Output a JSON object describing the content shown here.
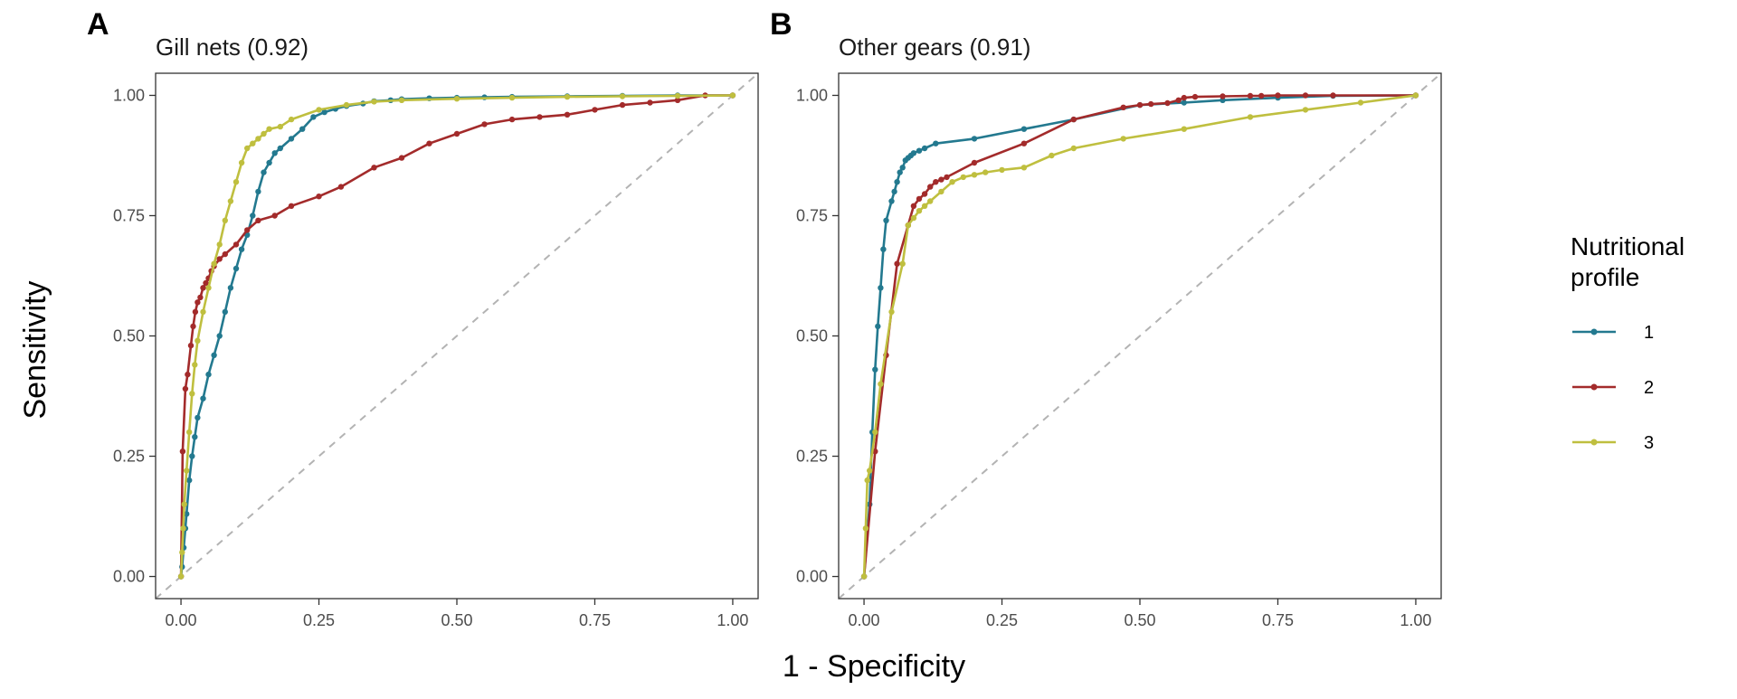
{
  "x_axis_title": "1 - Specificity",
  "y_axis_title": "Sensitivity",
  "legend": {
    "title_lines": [
      "Nutritional",
      "profile"
    ],
    "placement": "right"
  },
  "chart_data": [
    {
      "type": "line",
      "panel_letter": "A",
      "title": "Gill nets (0.92)",
      "xlim": [
        0,
        1
      ],
      "ylim": [
        0,
        1
      ],
      "x_ticks": [
        "0.00",
        "0.25",
        "0.50",
        "0.75",
        "1.00"
      ],
      "y_ticks": [
        "0.00",
        "0.25",
        "0.50",
        "0.75",
        "1.00"
      ],
      "reference_line": "diagonal",
      "grid": false,
      "series": [
        {
          "name": "1",
          "color": "#23798f",
          "x": [
            0,
            0.002,
            0.005,
            0.008,
            0.01,
            0.015,
            0.02,
            0.025,
            0.03,
            0.04,
            0.05,
            0.06,
            0.07,
            0.08,
            0.09,
            0.1,
            0.11,
            0.12,
            0.13,
            0.14,
            0.15,
            0.16,
            0.17,
            0.18,
            0.2,
            0.22,
            0.24,
            0.26,
            0.28,
            0.3,
            0.33,
            0.35,
            0.38,
            0.4,
            0.45,
            0.5,
            0.55,
            0.6,
            0.7,
            0.8,
            0.9,
            1.0
          ],
          "y": [
            0,
            0.02,
            0.06,
            0.1,
            0.13,
            0.2,
            0.25,
            0.29,
            0.33,
            0.37,
            0.42,
            0.46,
            0.5,
            0.55,
            0.6,
            0.64,
            0.68,
            0.71,
            0.75,
            0.8,
            0.84,
            0.86,
            0.88,
            0.89,
            0.91,
            0.93,
            0.955,
            0.965,
            0.972,
            0.978,
            0.983,
            0.988,
            0.99,
            0.992,
            0.994,
            0.995,
            0.996,
            0.997,
            0.998,
            0.999,
            1.0,
            1.0
          ]
        },
        {
          "name": "2",
          "color": "#a32b2b",
          "x": [
            0,
            0.003,
            0.008,
            0.012,
            0.018,
            0.022,
            0.026,
            0.03,
            0.035,
            0.04,
            0.045,
            0.05,
            0.055,
            0.06,
            0.07,
            0.08,
            0.1,
            0.12,
            0.14,
            0.17,
            0.2,
            0.25,
            0.29,
            0.35,
            0.4,
            0.45,
            0.5,
            0.55,
            0.6,
            0.65,
            0.7,
            0.75,
            0.8,
            0.85,
            0.9,
            0.95,
            1.0
          ],
          "y": [
            0,
            0.26,
            0.39,
            0.42,
            0.48,
            0.52,
            0.55,
            0.57,
            0.58,
            0.6,
            0.61,
            0.62,
            0.635,
            0.645,
            0.66,
            0.67,
            0.69,
            0.72,
            0.74,
            0.75,
            0.77,
            0.79,
            0.81,
            0.85,
            0.87,
            0.9,
            0.92,
            0.94,
            0.95,
            0.955,
            0.96,
            0.97,
            0.98,
            0.985,
            0.99,
            1.0,
            1.0
          ]
        },
        {
          "name": "3",
          "color": "#bfbf3f",
          "x": [
            0,
            0.002,
            0.004,
            0.006,
            0.01,
            0.015,
            0.02,
            0.025,
            0.03,
            0.04,
            0.05,
            0.06,
            0.07,
            0.08,
            0.09,
            0.1,
            0.11,
            0.12,
            0.13,
            0.14,
            0.15,
            0.16,
            0.18,
            0.2,
            0.25,
            0.3,
            0.35,
            0.4,
            0.5,
            0.6,
            0.7,
            0.8,
            0.9,
            1.0
          ],
          "y": [
            0,
            0.05,
            0.1,
            0.15,
            0.22,
            0.3,
            0.38,
            0.44,
            0.49,
            0.55,
            0.6,
            0.65,
            0.69,
            0.74,
            0.78,
            0.82,
            0.86,
            0.89,
            0.9,
            0.91,
            0.92,
            0.93,
            0.935,
            0.95,
            0.97,
            0.98,
            0.987,
            0.99,
            0.993,
            0.995,
            0.997,
            0.998,
            0.999,
            1.0
          ]
        }
      ]
    },
    {
      "type": "line",
      "panel_letter": "B",
      "title": "Other gears (0.91)",
      "xlim": [
        0,
        1
      ],
      "ylim": [
        0,
        1
      ],
      "x_ticks": [
        "0.00",
        "0.25",
        "0.50",
        "0.75",
        "1.00"
      ],
      "y_ticks": [
        "0.00",
        "0.25",
        "0.50",
        "0.75",
        "1.00"
      ],
      "reference_line": "diagonal",
      "grid": false,
      "series": [
        {
          "name": "1",
          "color": "#23798f",
          "x": [
            0,
            0.01,
            0.015,
            0.02,
            0.025,
            0.03,
            0.035,
            0.04,
            0.05,
            0.055,
            0.06,
            0.065,
            0.07,
            0.075,
            0.08,
            0.085,
            0.09,
            0.1,
            0.11,
            0.13,
            0.2,
            0.29,
            0.38,
            0.5,
            0.58,
            0.65,
            0.75,
            0.85,
            1.0
          ],
          "y": [
            0,
            0.15,
            0.3,
            0.43,
            0.52,
            0.6,
            0.68,
            0.74,
            0.78,
            0.8,
            0.82,
            0.84,
            0.85,
            0.865,
            0.87,
            0.875,
            0.88,
            0.885,
            0.89,
            0.9,
            0.91,
            0.93,
            0.95,
            0.98,
            0.985,
            0.99,
            0.995,
            0.999,
            1.0
          ]
        },
        {
          "name": "2",
          "color": "#a32b2b",
          "x": [
            0,
            0.02,
            0.04,
            0.06,
            0.08,
            0.09,
            0.1,
            0.11,
            0.12,
            0.13,
            0.14,
            0.15,
            0.2,
            0.29,
            0.38,
            0.47,
            0.5,
            0.52,
            0.55,
            0.57,
            0.58,
            0.6,
            0.65,
            0.7,
            0.72,
            0.75,
            0.8,
            0.85,
            1.0
          ],
          "y": [
            0,
            0.26,
            0.46,
            0.65,
            0.73,
            0.77,
            0.785,
            0.795,
            0.81,
            0.82,
            0.825,
            0.83,
            0.86,
            0.9,
            0.95,
            0.975,
            0.98,
            0.982,
            0.984,
            0.99,
            0.995,
            0.997,
            0.998,
            0.999,
            0.999,
            1.0,
            1.0,
            1.0,
            1.0
          ]
        },
        {
          "name": "3",
          "color": "#bfbf3f",
          "x": [
            0,
            0.003,
            0.006,
            0.01,
            0.02,
            0.03,
            0.05,
            0.07,
            0.08,
            0.09,
            0.1,
            0.11,
            0.12,
            0.14,
            0.16,
            0.18,
            0.2,
            0.22,
            0.25,
            0.29,
            0.34,
            0.38,
            0.47,
            0.58,
            0.7,
            0.8,
            0.9,
            1.0
          ],
          "y": [
            0,
            0.1,
            0.2,
            0.22,
            0.3,
            0.4,
            0.55,
            0.65,
            0.73,
            0.745,
            0.76,
            0.77,
            0.78,
            0.8,
            0.82,
            0.83,
            0.835,
            0.84,
            0.845,
            0.85,
            0.875,
            0.89,
            0.91,
            0.93,
            0.955,
            0.97,
            0.985,
            1.0
          ]
        }
      ]
    }
  ]
}
